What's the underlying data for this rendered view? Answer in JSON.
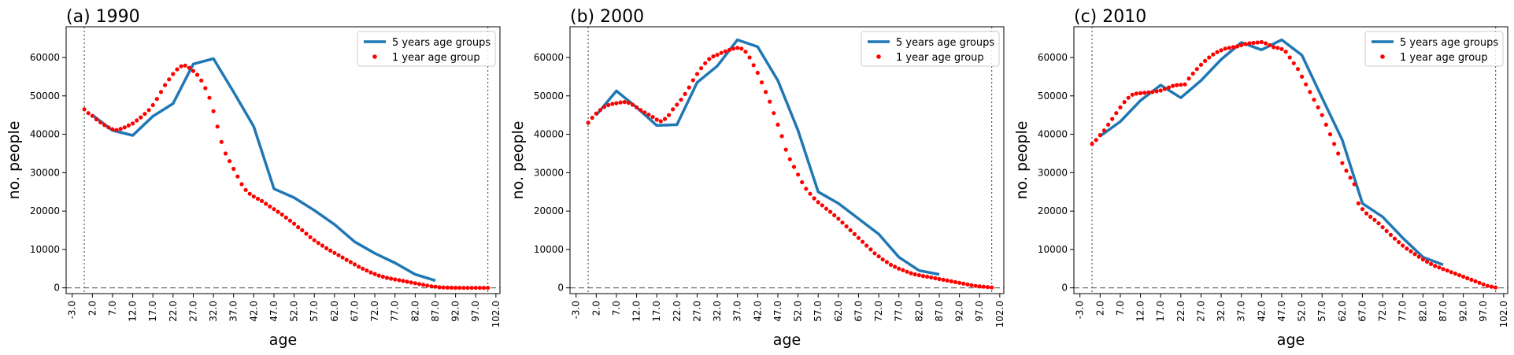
{
  "chart_data": [
    {
      "type": "line",
      "title": "(a) 1990",
      "xlabel": "age",
      "ylabel": "no. people",
      "xlim": [
        -4.5,
        103
      ],
      "ylim": [
        -1500,
        68000
      ],
      "xticks": [
        "-3.0",
        "2.0",
        "7.0",
        "12.0",
        "17.0",
        "22.0",
        "27.0",
        "32.0",
        "37.0",
        "42.0",
        "47.0",
        "52.0",
        "57.0",
        "62.0",
        "67.0",
        "72.0",
        "77.0",
        "82.0",
        "87.0",
        "92.0",
        "97.0",
        "102.0"
      ],
      "yticks": [
        "0",
        "10000",
        "20000",
        "30000",
        "40000",
        "50000",
        "60000"
      ],
      "vlines": [
        0,
        100
      ],
      "hline": 0,
      "legend_position": "top-right",
      "colors": {
        "line": "#1f77b4",
        "dots": "#ff0000"
      },
      "series": [
        {
          "name": "5 years age groups",
          "kind": "line",
          "x": [
            2,
            7,
            12,
            17,
            22,
            27,
            32,
            37,
            42,
            47,
            52,
            57,
            62,
            67,
            72,
            77,
            82,
            87
          ],
          "y": [
            45000,
            41000,
            39700,
            44700,
            48000,
            58300,
            59700,
            51000,
            42000,
            25800,
            23500,
            20200,
            16500,
            12000,
            9000,
            6500,
            3500,
            1900
          ]
        },
        {
          "name": "1 year age group",
          "kind": "scatter",
          "x": [
            0,
            1,
            2,
            3,
            4,
            5,
            6,
            7,
            8,
            9,
            10,
            11,
            12,
            13,
            14,
            15,
            16,
            17,
            18,
            19,
            20,
            21,
            22,
            23,
            24,
            25,
            26,
            27,
            28,
            29,
            30,
            31,
            32,
            33,
            34,
            35,
            36,
            37,
            38,
            39,
            40,
            41,
            42,
            43,
            44,
            45,
            46,
            47,
            48,
            49,
            50,
            51,
            52,
            53,
            54,
            55,
            56,
            57,
            58,
            59,
            60,
            61,
            62,
            63,
            64,
            65,
            66,
            67,
            68,
            69,
            70,
            71,
            72,
            73,
            74,
            75,
            76,
            77,
            78,
            79,
            80,
            81,
            82,
            83,
            84,
            85,
            86,
            87,
            88,
            89,
            90,
            91,
            92,
            93,
            94,
            95,
            96,
            97,
            98,
            99,
            100
          ],
          "y": [
            46500,
            45500,
            44800,
            43900,
            43100,
            42400,
            41800,
            41300,
            41100,
            41400,
            41800,
            42300,
            42800,
            43600,
            44400,
            45300,
            46300,
            47600,
            49200,
            51000,
            52800,
            54300,
            55700,
            56900,
            57700,
            57900,
            57300,
            56500,
            55500,
            54000,
            52000,
            49500,
            46000,
            42000,
            38000,
            35000,
            33000,
            31000,
            29000,
            27000,
            25500,
            24500,
            23800,
            23200,
            22600,
            21900,
            21200,
            20500,
            19800,
            19100,
            18300,
            17500,
            16700,
            15800,
            15000,
            14100,
            13200,
            12400,
            11700,
            11000,
            10300,
            9700,
            9100,
            8500,
            7900,
            7300,
            6700,
            6100,
            5500,
            5000,
            4500,
            4000,
            3600,
            3200,
            2900,
            2600,
            2400,
            2200,
            2000,
            1800,
            1600,
            1400,
            1200,
            1000,
            800,
            600,
            400,
            300,
            150,
            100,
            50,
            30,
            20,
            10,
            5,
            3,
            2,
            1,
            1,
            1,
            1
          ]
        }
      ]
    },
    {
      "type": "line",
      "title": "(b) 2000",
      "xlabel": "age",
      "ylabel": "no. people",
      "xlim": [
        -4.5,
        103
      ],
      "ylim": [
        -1500,
        68000
      ],
      "xticks": [
        "-3.0",
        "2.0",
        "7.0",
        "12.0",
        "17.0",
        "22.0",
        "27.0",
        "32.0",
        "37.0",
        "42.0",
        "47.0",
        "52.0",
        "57.0",
        "62.0",
        "67.0",
        "72.0",
        "77.0",
        "82.0",
        "87.0",
        "92.0",
        "97.0",
        "102.0"
      ],
      "yticks": [
        "0",
        "10000",
        "20000",
        "30000",
        "40000",
        "50000",
        "60000"
      ],
      "vlines": [
        0,
        100
      ],
      "hline": 0,
      "legend_position": "top-right",
      "colors": {
        "line": "#1f77b4",
        "dots": "#ff0000"
      },
      "series": [
        {
          "name": "5 years age groups",
          "kind": "line",
          "x": [
            2,
            7,
            12,
            17,
            22,
            27,
            32,
            37,
            42,
            47,
            52,
            57,
            62,
            67,
            72,
            77,
            82,
            87
          ],
          "y": [
            45000,
            51300,
            47000,
            42300,
            42500,
            53500,
            57800,
            64600,
            62800,
            54000,
            41000,
            25000,
            22000,
            18000,
            14000,
            8000,
            4500,
            3500
          ]
        },
        {
          "name": "1 year age group",
          "kind": "scatter",
          "x": [
            0,
            1,
            2,
            3,
            4,
            5,
            6,
            7,
            8,
            9,
            10,
            11,
            12,
            13,
            14,
            15,
            16,
            17,
            18,
            19,
            20,
            21,
            22,
            23,
            24,
            25,
            26,
            27,
            28,
            29,
            30,
            31,
            32,
            33,
            34,
            35,
            36,
            37,
            38,
            39,
            40,
            41,
            42,
            43,
            44,
            45,
            46,
            47,
            48,
            49,
            50,
            51,
            52,
            53,
            54,
            55,
            56,
            57,
            58,
            59,
            60,
            61,
            62,
            63,
            64,
            65,
            66,
            67,
            68,
            69,
            70,
            71,
            72,
            73,
            74,
            75,
            76,
            77,
            78,
            79,
            80,
            81,
            82,
            83,
            84,
            85,
            86,
            87,
            88,
            89,
            90,
            91,
            92,
            93,
            94,
            95,
            96,
            97,
            98,
            99,
            100
          ],
          "y": [
            43000,
            44300,
            45400,
            46300,
            47100,
            47600,
            47900,
            48100,
            48300,
            48400,
            48200,
            47700,
            47000,
            46300,
            45700,
            45100,
            44500,
            43800,
            43400,
            44000,
            45000,
            46500,
            47700,
            49000,
            50500,
            52200,
            54100,
            55700,
            57200,
            58500,
            59600,
            60300,
            60700,
            61200,
            61600,
            62000,
            62300,
            62500,
            62300,
            61500,
            60000,
            58000,
            56000,
            53500,
            51000,
            48500,
            45500,
            42500,
            39500,
            36000,
            33500,
            31500,
            29500,
            27500,
            25800,
            24500,
            23300,
            22300,
            21500,
            20600,
            19800,
            18900,
            18000,
            17000,
            16000,
            15000,
            14000,
            13000,
            12000,
            11000,
            10000,
            9000,
            8200,
            7400,
            6700,
            6000,
            5500,
            5000,
            4600,
            4200,
            3800,
            3500,
            3300,
            3100,
            2900,
            2700,
            2500,
            2300,
            2100,
            1900,
            1700,
            1500,
            1300,
            1100,
            900,
            700,
            500,
            400,
            300,
            200,
            100
          ]
        }
      ]
    },
    {
      "type": "line",
      "title": "(c) 2010",
      "xlabel": "age",
      "ylabel": "no. people",
      "xlim": [
        -4.5,
        103
      ],
      "ylim": [
        -1500,
        68000
      ],
      "xticks": [
        "-3.0",
        "2.0",
        "7.0",
        "12.0",
        "17.0",
        "22.0",
        "27.0",
        "32.0",
        "37.0",
        "42.0",
        "47.0",
        "52.0",
        "57.0",
        "62.0",
        "67.0",
        "72.0",
        "77.0",
        "82.0",
        "87.0",
        "92.0",
        "97.0",
        "102.0"
      ],
      "yticks": [
        "0",
        "10000",
        "20000",
        "30000",
        "40000",
        "50000",
        "60000"
      ],
      "vlines": [
        0,
        100
      ],
      "hline": 0,
      "legend_position": "top-right",
      "colors": {
        "line": "#1f77b4",
        "dots": "#ff0000"
      },
      "series": [
        {
          "name": "5 years age groups",
          "kind": "line",
          "x": [
            2,
            7,
            12,
            17,
            22,
            27,
            32,
            37,
            42,
            47,
            52,
            57,
            62,
            67,
            72,
            77,
            82,
            87
          ],
          "y": [
            39500,
            43300,
            48800,
            52800,
            49500,
            54000,
            59500,
            63900,
            62000,
            64600,
            60600,
            49500,
            38500,
            22000,
            18500,
            13000,
            8000,
            6000
          ]
        },
        {
          "name": "1 year age group",
          "kind": "scatter",
          "x": [
            0,
            1,
            2,
            3,
            4,
            5,
            6,
            7,
            8,
            9,
            10,
            11,
            12,
            13,
            14,
            15,
            16,
            17,
            18,
            19,
            20,
            21,
            22,
            23,
            24,
            25,
            26,
            27,
            28,
            29,
            30,
            31,
            32,
            33,
            34,
            35,
            36,
            37,
            38,
            39,
            40,
            41,
            42,
            43,
            44,
            45,
            46,
            47,
            48,
            49,
            50,
            51,
            52,
            53,
            54,
            55,
            56,
            57,
            58,
            59,
            60,
            61,
            62,
            63,
            64,
            65,
            66,
            67,
            68,
            69,
            70,
            71,
            72,
            73,
            74,
            75,
            76,
            77,
            78,
            79,
            80,
            81,
            82,
            83,
            84,
            85,
            86,
            87,
            88,
            89,
            90,
            91,
            92,
            93,
            94,
            95,
            96,
            97,
            98,
            99,
            100
          ],
          "y": [
            37500,
            38500,
            39800,
            41000,
            42500,
            44000,
            45500,
            47000,
            48400,
            49500,
            50300,
            50600,
            50700,
            50800,
            50900,
            51000,
            51200,
            51400,
            51800,
            52200,
            52600,
            52800,
            52900,
            53000,
            54500,
            55800,
            57000,
            58100,
            59100,
            60000,
            60800,
            61400,
            61900,
            62300,
            62500,
            62700,
            62900,
            63200,
            63500,
            63700,
            63800,
            63900,
            64000,
            63700,
            63200,
            62700,
            62500,
            62200,
            61500,
            60000,
            58500,
            57000,
            55000,
            53000,
            51000,
            49000,
            47000,
            45000,
            42500,
            40000,
            37500,
            35000,
            32500,
            30500,
            28700,
            27000,
            22000,
            20500,
            19400,
            18500,
            17700,
            16800,
            15800,
            14800,
            13800,
            12800,
            11900,
            11000,
            10200,
            9500,
            8800,
            8100,
            7400,
            6800,
            6200,
            5700,
            5300,
            4900,
            4500,
            4100,
            3700,
            3300,
            2900,
            2500,
            2100,
            1700,
            1300,
            900,
            500,
            300,
            100
          ]
        }
      ]
    }
  ]
}
